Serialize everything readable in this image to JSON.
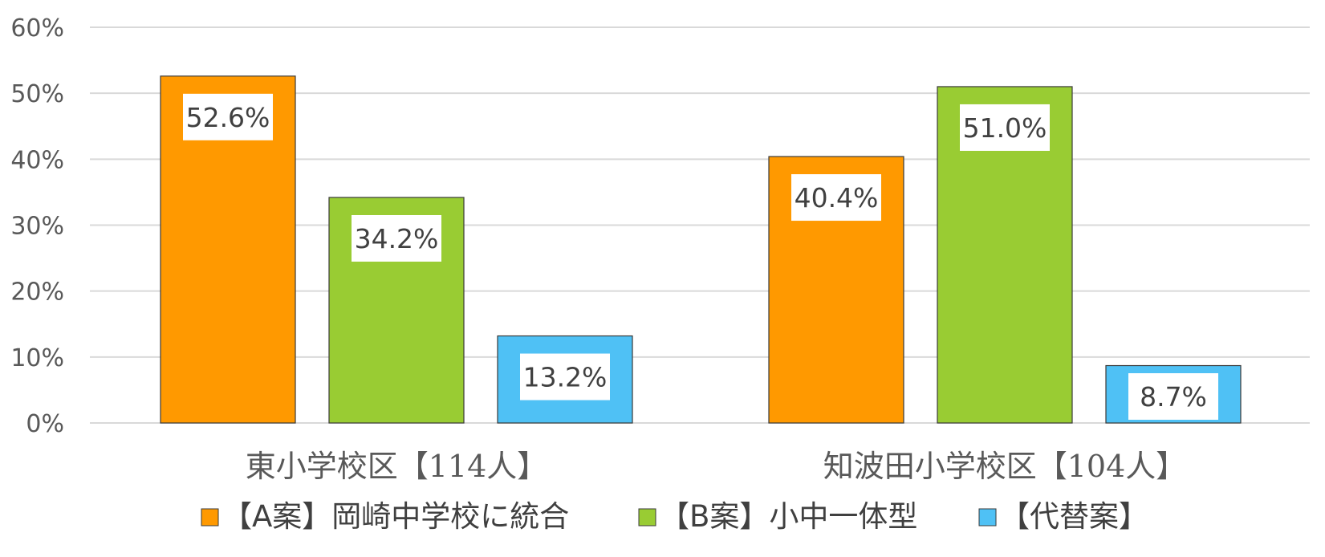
{
  "chart_data": {
    "type": "bar",
    "categories": [
      "東小学校区【114人】",
      "知波田小学校区【104人】"
    ],
    "series": [
      {
        "name": "【A案】岡崎中学校に統合",
        "color": "#FF9900",
        "values": [
          52.6,
          40.4
        ],
        "labels": [
          "52.6%",
          "40.4%"
        ]
      },
      {
        "name": "【B案】小中一体型",
        "color": "#99CC33",
        "values": [
          34.2,
          51.0
        ],
        "labels": [
          "34.2%",
          "51.0%"
        ]
      },
      {
        "name": "【代替案】",
        "color": "#4FC1F5",
        "values": [
          13.2,
          8.7
        ],
        "labels": [
          "13.2%",
          "8.7%"
        ]
      }
    ],
    "yticks": [
      "0%",
      "10%",
      "20%",
      "30%",
      "40%",
      "50%",
      "60%"
    ],
    "ylim": [
      0,
      60
    ],
    "grid": true,
    "legend_position": "bottom",
    "title": "",
    "xlabel": "",
    "ylabel": ""
  }
}
